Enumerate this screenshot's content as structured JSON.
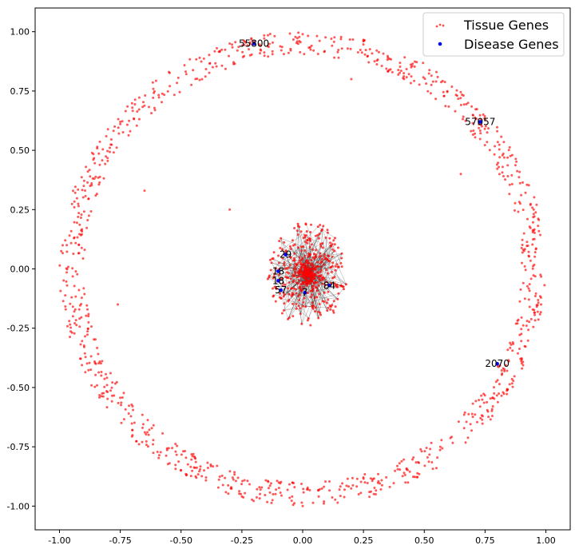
{
  "chart_data": {
    "type": "scatter",
    "title": "",
    "xlabel": "",
    "ylabel": "",
    "xlim": [
      -1.1,
      1.1
    ],
    "ylim": [
      -1.1,
      1.1
    ],
    "grid": false,
    "legend_position": "top-right",
    "x_ticks": [
      "-1.00",
      "-0.75",
      "-0.50",
      "-0.25",
      "0.00",
      "0.25",
      "0.50",
      "0.75",
      "1.00"
    ],
    "y_ticks": [
      "1.00",
      "0.75",
      "0.50",
      "0.25",
      "0.00",
      "-0.25",
      "-0.50",
      "-0.75",
      "-1.00"
    ],
    "series": [
      {
        "name": "Tissue Genes",
        "color": "#ff0000",
        "distribution": "ring of ~1000 nodes (radius 0.92–1.0) plus dense central cluster (radius < 0.25) connected by gray edges",
        "sample_points": [
          [
            -0.97,
            0.1
          ],
          [
            -0.95,
            -0.12
          ],
          [
            -0.9,
            0.35
          ],
          [
            -0.85,
            -0.4
          ],
          [
            -0.75,
            0.62
          ],
          [
            -0.7,
            -0.68
          ],
          [
            -0.55,
            0.83
          ],
          [
            -0.5,
            -0.85
          ],
          [
            -0.3,
            0.95
          ],
          [
            -0.25,
            -0.96
          ],
          [
            0.0,
            0.99
          ],
          [
            0.0,
            -1.0
          ],
          [
            0.25,
            0.96
          ],
          [
            0.3,
            -0.95
          ],
          [
            0.55,
            0.83
          ],
          [
            0.55,
            -0.84
          ],
          [
            0.8,
            0.58
          ],
          [
            0.78,
            -0.62
          ],
          [
            0.95,
            0.25
          ],
          [
            0.98,
            -0.15
          ],
          [
            0.05,
            0.0
          ],
          [
            0.02,
            -0.05
          ],
          [
            -0.05,
            0.05
          ],
          [
            0.08,
            0.03
          ],
          [
            -0.08,
            -0.06
          ],
          [
            -0.65,
            0.33
          ],
          [
            -0.76,
            -0.15
          ],
          [
            0.65,
            0.4
          ],
          [
            0.2,
            0.8
          ],
          [
            -0.3,
            0.25
          ]
        ]
      },
      {
        "name": "Disease Genes",
        "color": "#0000ff",
        "points": [
          {
            "id": "55800",
            "x": -0.2,
            "y": 0.95
          },
          {
            "id": "57057",
            "x": 0.73,
            "y": 0.62
          },
          {
            "id": "2070",
            "x": 0.8,
            "y": -0.4
          },
          {
            "id": "7",
            "x": 0.01,
            "y": -0.1
          },
          {
            "id": "18",
            "x": -0.1,
            "y": -0.01
          },
          {
            "id": "18",
            "x": -0.1,
            "y": -0.05
          },
          {
            "id": "57",
            "x": -0.09,
            "y": -0.09
          },
          {
            "id": "84",
            "x": 0.11,
            "y": -0.07
          },
          {
            "id": "29",
            "x": -0.07,
            "y": 0.06
          }
        ]
      }
    ]
  },
  "legend": {
    "tissue_label": "Tissue Genes",
    "disease_label": "Disease Genes"
  }
}
